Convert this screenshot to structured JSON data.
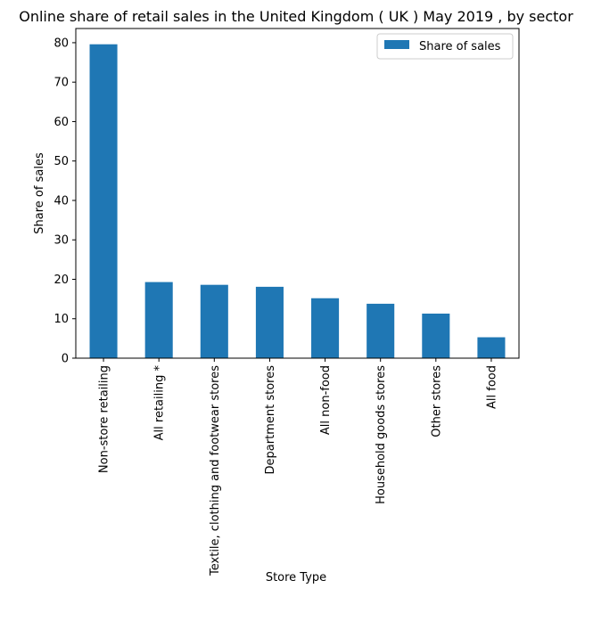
{
  "chart_data": {
    "type": "bar",
    "title": "Online share of retail sales in the United Kingdom ( UK ) May 2019 , by sector",
    "xlabel": "Store Type",
    "ylabel": "Share of sales",
    "categories": [
      "Non-store retailing",
      "All retailing *",
      "Textile, clothing and footwear stores",
      "Department stores",
      "All non-food",
      "Household goods stores",
      "Other stores",
      "All food"
    ],
    "series": [
      {
        "name": "Share of sales",
        "values": [
          79.6,
          19.3,
          18.6,
          18.1,
          15.2,
          13.8,
          11.3,
          5.3
        ],
        "color": "#1f77b4"
      }
    ],
    "ylim": [
      0,
      83.6
    ],
    "yticks": [
      0,
      10,
      20,
      30,
      40,
      50,
      60,
      70,
      80
    ],
    "grid": false,
    "legend": "top-right"
  }
}
